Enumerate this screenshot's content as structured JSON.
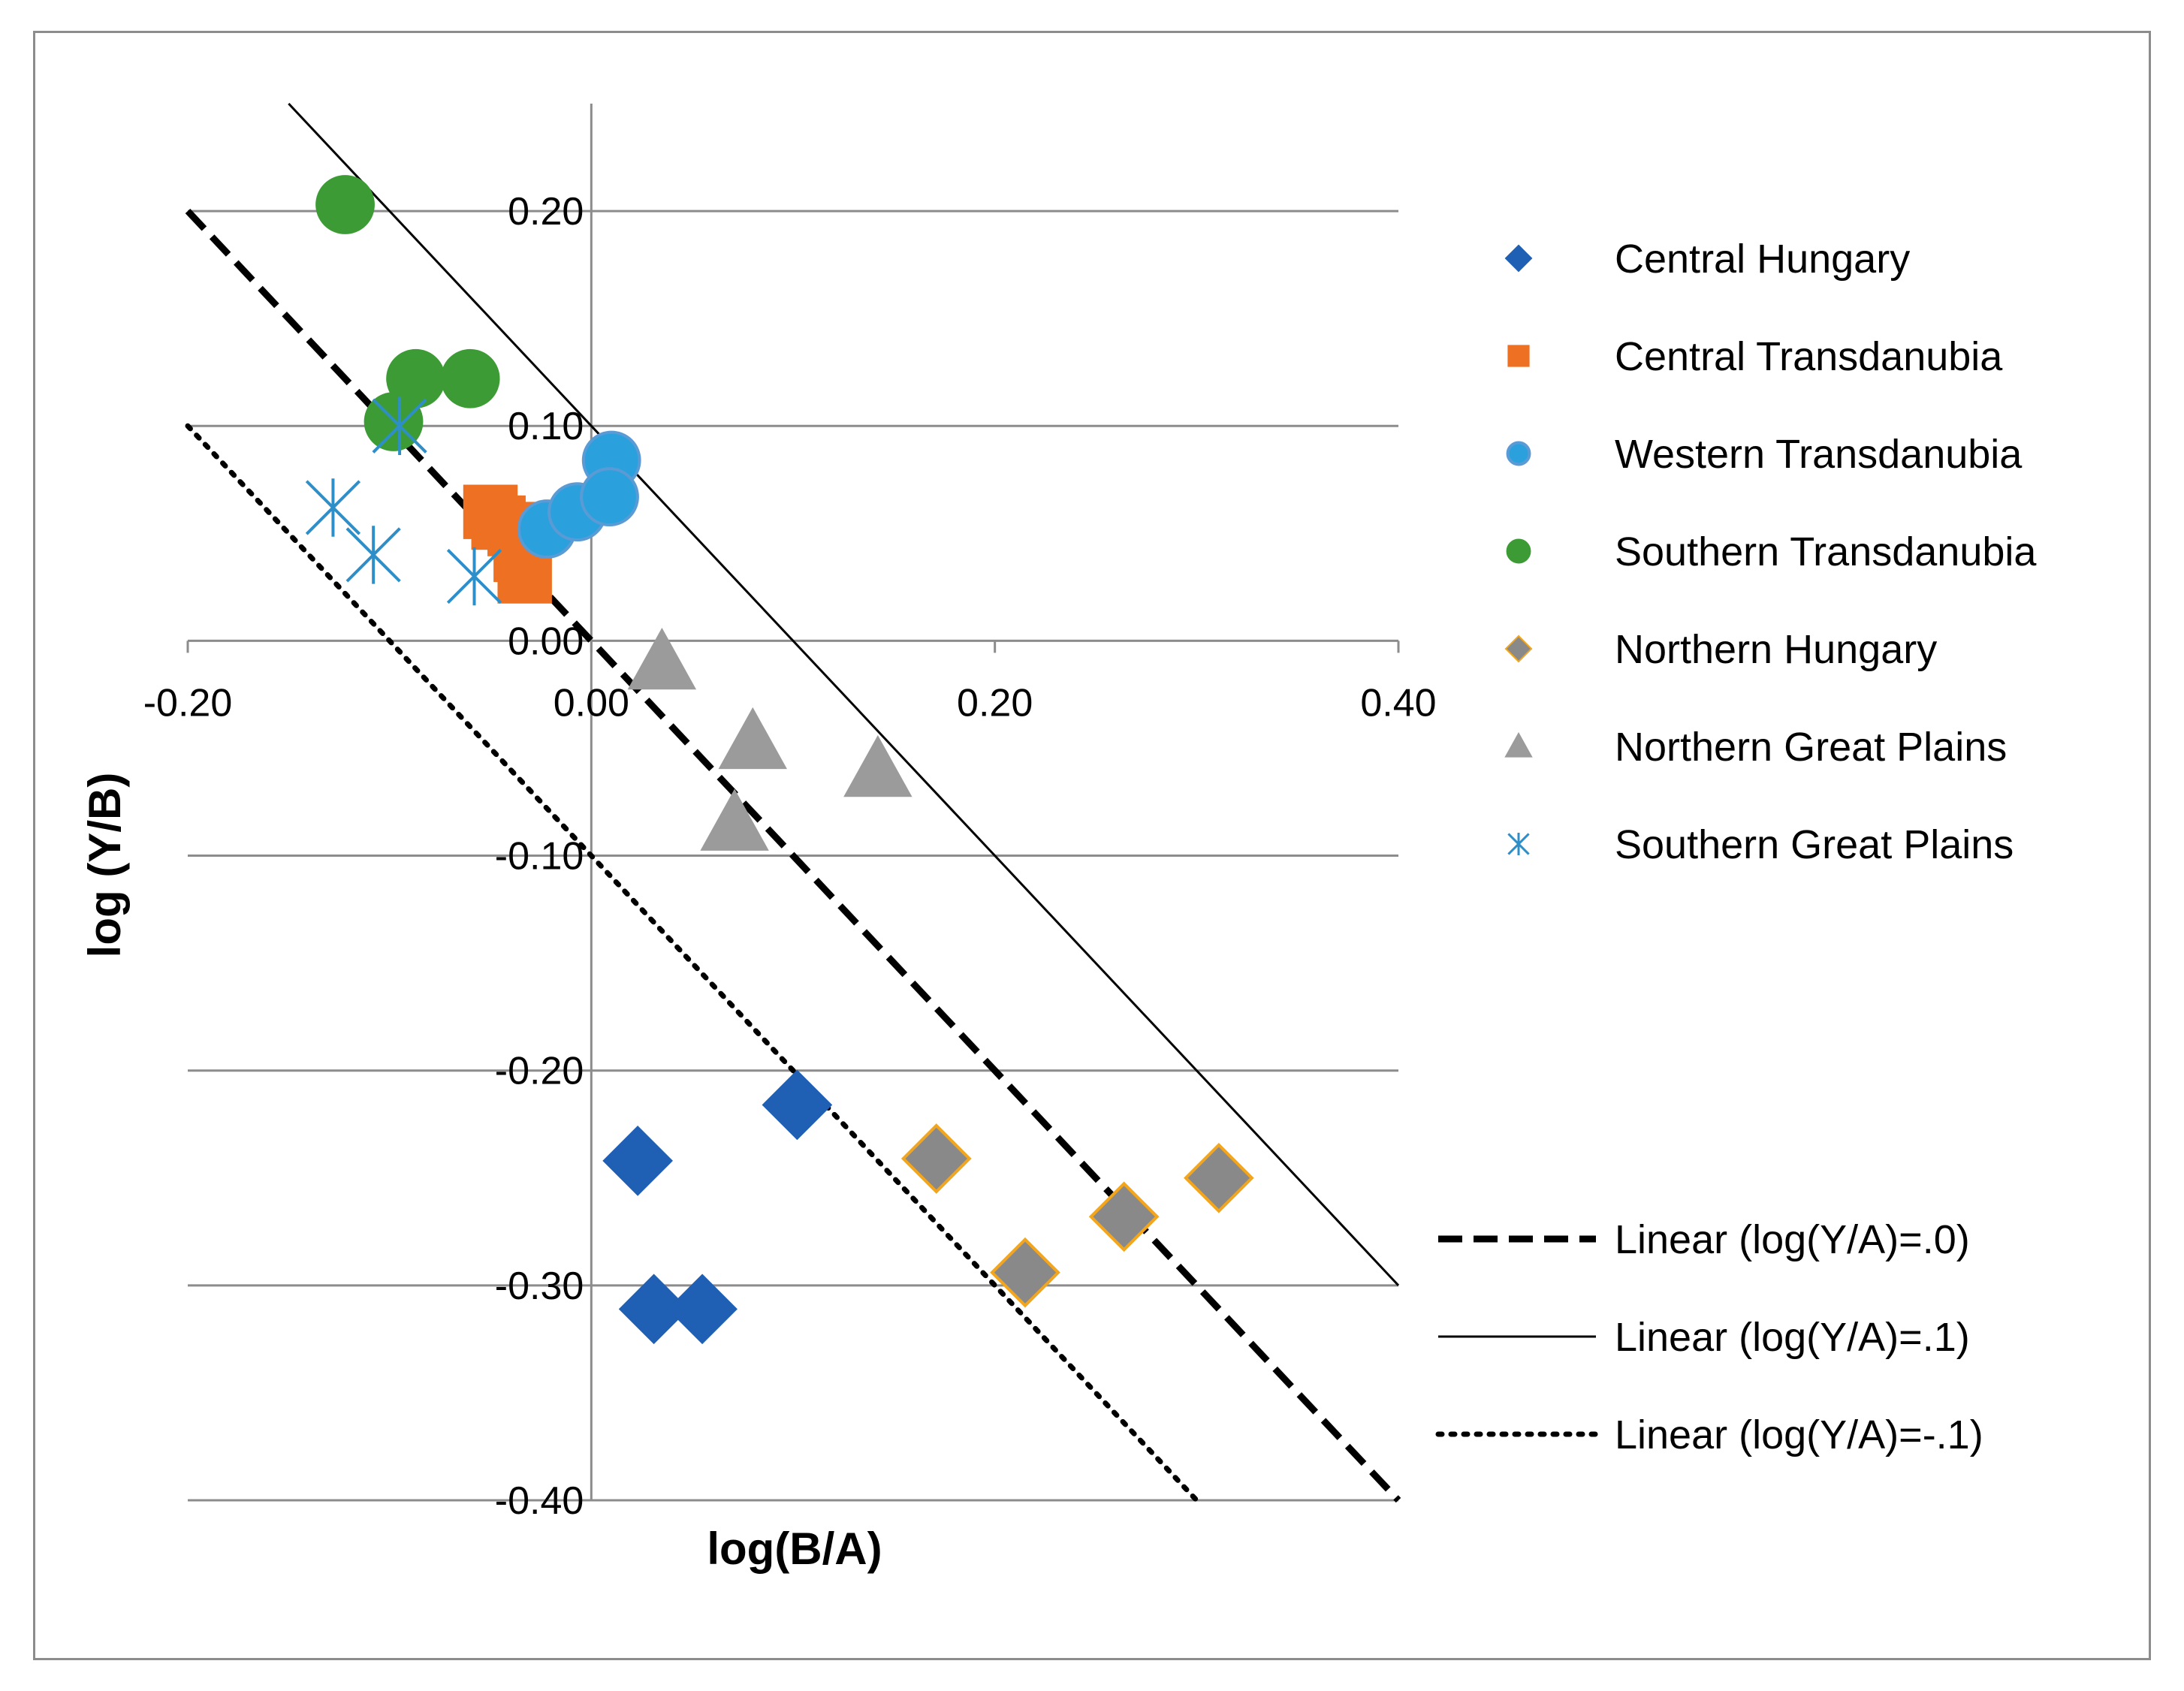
{
  "chart_data": {
    "type": "scatter",
    "title": "",
    "xlabel": "log(B/A)",
    "ylabel": "log (Y/B)",
    "xlim": [
      -0.2,
      0.4
    ],
    "ylim": [
      -0.4,
      0.25
    ],
    "x_ticks": [
      {
        "value": -0.2,
        "label": "-0.20"
      },
      {
        "value": 0.0,
        "label": "0.00"
      },
      {
        "value": 0.2,
        "label": "0.20"
      },
      {
        "value": 0.4,
        "label": "0.40"
      }
    ],
    "y_ticks": [
      {
        "value": 0.2,
        "label": "0.20"
      },
      {
        "value": 0.1,
        "label": "0.10"
      },
      {
        "value": 0.0,
        "label": "0.00"
      },
      {
        "value": -0.1,
        "label": "-0.10"
      },
      {
        "value": -0.2,
        "label": "-0.20"
      },
      {
        "value": -0.3,
        "label": "-0.30"
      },
      {
        "value": -0.4,
        "label": "-0.40"
      }
    ],
    "grid": "horizontal",
    "legend_position": "right",
    "series": [
      {
        "name": "Central Hungary",
        "marker": "diamond",
        "color": "#1f5fb4",
        "stroke": "#1f5fb4",
        "points": [
          [
            0.023,
            -0.242
          ],
          [
            0.031,
            -0.311
          ],
          [
            0.055,
            -0.311
          ],
          [
            0.102,
            -0.216
          ]
        ]
      },
      {
        "name": "Central Transdanubia",
        "marker": "square",
        "color": "#ee7023",
        "stroke": "#ee7023",
        "points": [
          [
            -0.05,
            0.06
          ],
          [
            -0.046,
            0.055
          ],
          [
            -0.038,
            0.052
          ],
          [
            -0.035,
            0.04
          ],
          [
            -0.033,
            0.03
          ]
        ]
      },
      {
        "name": "Western Transdanubia",
        "marker": "circle",
        "color": "#2aa1dd",
        "stroke": "#5b9bd5",
        "points": [
          [
            0.01,
            0.084
          ],
          [
            -0.022,
            0.052
          ],
          [
            -0.007,
            0.06
          ],
          [
            0.009,
            0.067
          ]
        ]
      },
      {
        "name": "Southern Transdanubia",
        "marker": "circle",
        "color": "#3d9b35",
        "stroke": "#3d9b35",
        "points": [
          [
            -0.122,
            0.203
          ],
          [
            -0.087,
            0.122
          ],
          [
            -0.06,
            0.122
          ],
          [
            -0.098,
            0.102
          ]
        ]
      },
      {
        "name": "Northern Hungary",
        "marker": "diamond",
        "color": "#898989",
        "stroke": "#f2a51f",
        "points": [
          [
            0.171,
            -0.241
          ],
          [
            0.215,
            -0.294
          ],
          [
            0.264,
            -0.268
          ],
          [
            0.311,
            -0.25
          ]
        ]
      },
      {
        "name": "Northern Great Plains",
        "marker": "triangle",
        "color": "#9b9b9b",
        "stroke": "#9b9b9b",
        "points": [
          [
            0.035,
            -0.01
          ],
          [
            0.08,
            -0.047
          ],
          [
            0.071,
            -0.085
          ],
          [
            0.142,
            -0.06
          ]
        ]
      },
      {
        "name": "Southern Great Plains",
        "marker": "star",
        "color": "#2e8fc8",
        "stroke": "#2e8fc8",
        "points": [
          [
            -0.128,
            0.062
          ],
          [
            -0.108,
            0.04
          ],
          [
            -0.095,
            0.1
          ],
          [
            -0.058,
            0.03
          ]
        ]
      }
    ],
    "lines": [
      {
        "name": "Linear (log(Y/A)=.0)",
        "style": "dashed",
        "x1": -0.2,
        "y1": 0.2,
        "x2": 0.4,
        "y2": -0.4
      },
      {
        "name": "Linear (log(Y/A)=.1)",
        "style": "solid",
        "x1": -0.15,
        "y1": 0.25,
        "x2": 0.4,
        "y2": -0.3
      },
      {
        "name": "Linear (log(Y/A)=-.1)",
        "style": "dotted",
        "x1": -0.2,
        "y1": 0.1,
        "x2": 0.3,
        "y2": -0.4
      }
    ]
  }
}
